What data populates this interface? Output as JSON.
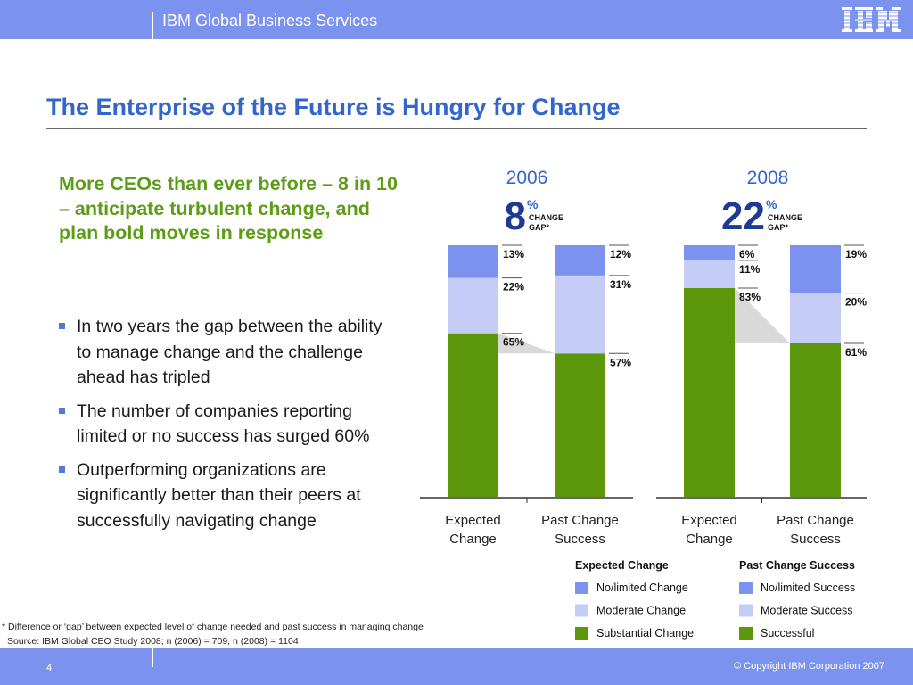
{
  "header": {
    "brand": "IBM Global Business Services",
    "logo": "IBM"
  },
  "slide": {
    "title": "The Enterprise of the Future is Hungry for Change",
    "headline": "More CEOs than ever before – 8 in 10 – anticipate turbulent change, and plan bold moves in response",
    "bullets": [
      {
        "text": "In two years the gap between the ability to manage change and the challenge ahead has ",
        "emph": "tripled"
      },
      {
        "text": "The number of companies reporting limited or no success has surged 60%",
        "emph": ""
      },
      {
        "text": "Outperforming organizations are significantly better than their peers at successfully navigating change",
        "emph": ""
      }
    ],
    "footnote": "* Difference or ‘gap’ between expected level of change needed and past success in managing change",
    "source": "Source: IBM Global CEO Study 2008; n (2006) = 709, n (2008) = 1104"
  },
  "footer": {
    "page": "4",
    "copyright": "© Copyright IBM Corporation 2007"
  },
  "colors": {
    "brand_bar": "#7b93ee",
    "title": "#3366cc",
    "headline": "#5d9c16",
    "no_limited": "#7b93ee",
    "moderate": "#c5ccf5",
    "substantial": "#5c960a",
    "gap": "#d9d9d9"
  },
  "chart_data": {
    "type": "bar",
    "stacked": true,
    "groups": [
      {
        "year": "2006",
        "gap_value": "8",
        "gap_unit": "%",
        "gap_label_1": "CHANGE",
        "gap_label_2": "GAP*",
        "categories": [
          "Expected Change",
          "Past Change Success"
        ],
        "series": [
          {
            "values": [
              65,
              57
            ],
            "labels": [
              "65%",
              "57%"
            ],
            "color_key": "substantial"
          },
          {
            "values": [
              22,
              31
            ],
            "labels": [
              "22%",
              "31%"
            ],
            "color_key": "moderate"
          },
          {
            "values": [
              13,
              12
            ],
            "labels": [
              "13%",
              "12%"
            ],
            "color_key": "no_limited"
          }
        ]
      },
      {
        "year": "2008",
        "gap_value": "22",
        "gap_unit": "%",
        "gap_label_1": "CHANGE",
        "gap_label_2": "GAP*",
        "categories": [
          "Expected Change",
          "Past Change Success"
        ],
        "series": [
          {
            "values": [
              83,
              61
            ],
            "labels": [
              "83%",
              "61%"
            ],
            "color_key": "substantial"
          },
          {
            "values": [
              11,
              20
            ],
            "labels": [
              "11%",
              "20%"
            ],
            "color_key": "moderate"
          },
          {
            "values": [
              6,
              19
            ],
            "labels": [
              "6%",
              "19%"
            ],
            "color_key": "no_limited"
          }
        ]
      }
    ],
    "xlabels": [
      "Expected Change",
      "Past Change Success"
    ],
    "ylim": [
      0,
      100
    ],
    "legends": [
      {
        "title": "Expected Change",
        "items": [
          {
            "label": "No/limited Change",
            "color_key": "no_limited"
          },
          {
            "label": "Moderate Change",
            "color_key": "moderate"
          },
          {
            "label": "Substantial Change",
            "color_key": "substantial"
          }
        ]
      },
      {
        "title": "Past Change Success",
        "items": [
          {
            "label": "No/limited Success",
            "color_key": "no_limited"
          },
          {
            "label": "Moderate Success",
            "color_key": "moderate"
          },
          {
            "label": "Successful",
            "color_key": "substantial"
          }
        ]
      }
    ]
  }
}
